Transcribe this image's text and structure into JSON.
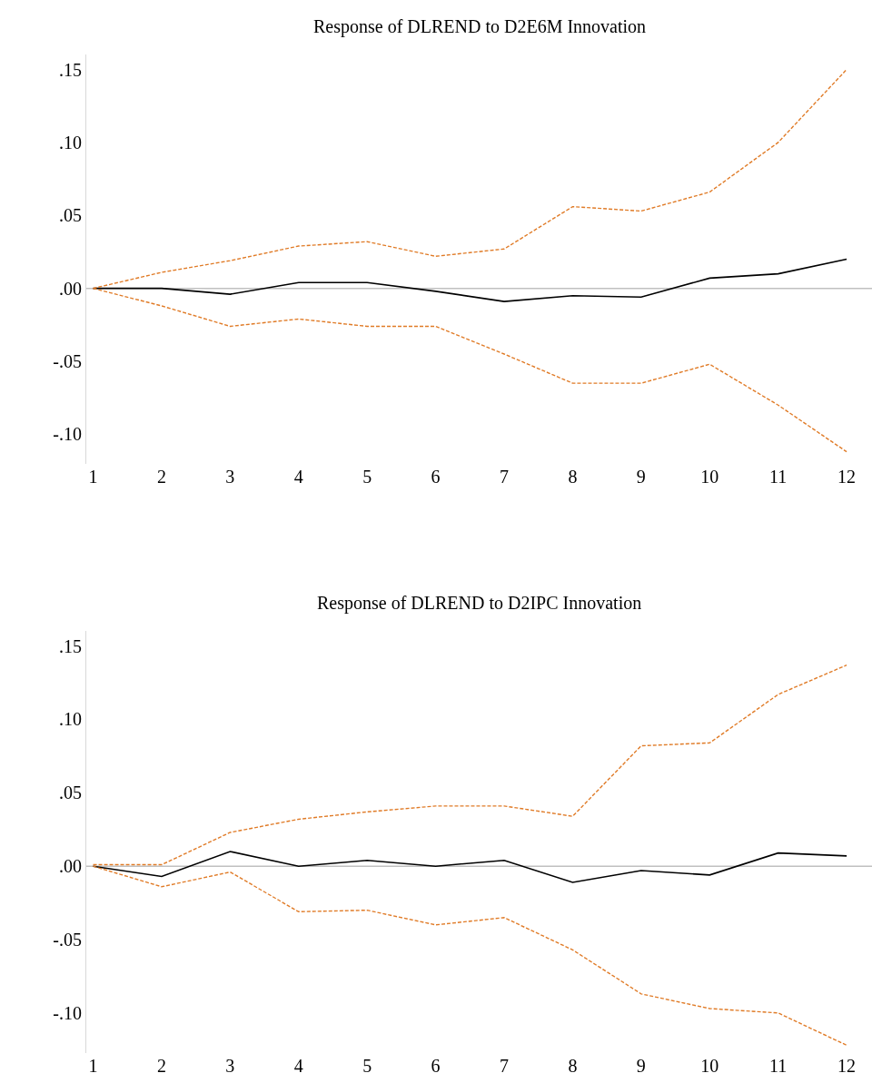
{
  "chart_data": [
    {
      "type": "line",
      "title": "Response of DLREND to D2E6M Innovation",
      "x": [
        1,
        2,
        3,
        4,
        5,
        6,
        7,
        8,
        9,
        10,
        11,
        12
      ],
      "xlim": [
        0.9,
        12.37
      ],
      "xticks": [
        1,
        2,
        3,
        4,
        5,
        6,
        7,
        8,
        9,
        10,
        11,
        12
      ],
      "ylim": [
        -0.12,
        0.16
      ],
      "yticks": [
        {
          "value": -0.1,
          "label": "-.10"
        },
        {
          "value": -0.05,
          "label": "-.05"
        },
        {
          "value": 0,
          "label": ".00"
        },
        {
          "value": 0.05,
          "label": ".05"
        },
        {
          "value": 0.1,
          "label": ".10"
        },
        {
          "value": 0.15,
          "label": ".15"
        }
      ],
      "grid": false,
      "legend": false,
      "ref_lines": [
        {
          "axis": "y",
          "value": 0,
          "color": "#c0c0c0"
        }
      ],
      "series": [
        {
          "color": "#000000",
          "line_style": "solid",
          "values": [
            0,
            0,
            -0.004,
            0.004,
            0.004,
            -0.002,
            -0.009,
            -0.005,
            -0.006,
            0.007,
            0.01,
            0.02
          ]
        },
        {
          "color": "#e07b27",
          "line_style": "dashed",
          "values": [
            0,
            0.011,
            0.019,
            0.029,
            0.032,
            0.022,
            0.027,
            0.056,
            0.053,
            0.066,
            0.1,
            0.15
          ]
        },
        {
          "color": "#e07b27",
          "line_style": "dashed",
          "values": [
            0,
            -0.012,
            -0.026,
            -0.021,
            -0.026,
            -0.026,
            -0.045,
            -0.065,
            -0.065,
            -0.052,
            -0.08,
            -0.112
          ]
        }
      ]
    },
    {
      "type": "line",
      "title": "Response of DLREND to D2IPC Innovation",
      "x": [
        1,
        2,
        3,
        4,
        5,
        6,
        7,
        8,
        9,
        10,
        11,
        12
      ],
      "xlim": [
        0.9,
        12.37
      ],
      "xticks": [
        1,
        2,
        3,
        4,
        5,
        6,
        7,
        8,
        9,
        10,
        11,
        12
      ],
      "ylim": [
        -0.127,
        0.16
      ],
      "yticks": [
        {
          "value": -0.1,
          "label": "-.10"
        },
        {
          "value": -0.05,
          "label": "-.05"
        },
        {
          "value": 0,
          "label": ".00"
        },
        {
          "value": 0.05,
          "label": ".05"
        },
        {
          "value": 0.1,
          "label": ".10"
        },
        {
          "value": 0.15,
          "label": ".15"
        }
      ],
      "grid": false,
      "legend": false,
      "ref_lines": [
        {
          "axis": "y",
          "value": 0,
          "color": "#c0c0c0"
        }
      ],
      "series": [
        {
          "color": "#000000",
          "line_style": "solid",
          "values": [
            0,
            -0.007,
            0.01,
            0,
            0.004,
            0,
            0.004,
            -0.011,
            -0.003,
            -0.006,
            0.009,
            0.007
          ]
        },
        {
          "color": "#e07b27",
          "line_style": "dashed",
          "values": [
            0.001,
            0.001,
            0.023,
            0.032,
            0.037,
            0.041,
            0.041,
            0.034,
            0.082,
            0.084,
            0.117,
            0.137
          ]
        },
        {
          "color": "#e07b27",
          "line_style": "dashed",
          "values": [
            0,
            -0.014,
            -0.004,
            -0.031,
            -0.03,
            -0.04,
            -0.035,
            -0.057,
            -0.087,
            -0.097,
            -0.1,
            -0.122
          ]
        }
      ]
    }
  ]
}
